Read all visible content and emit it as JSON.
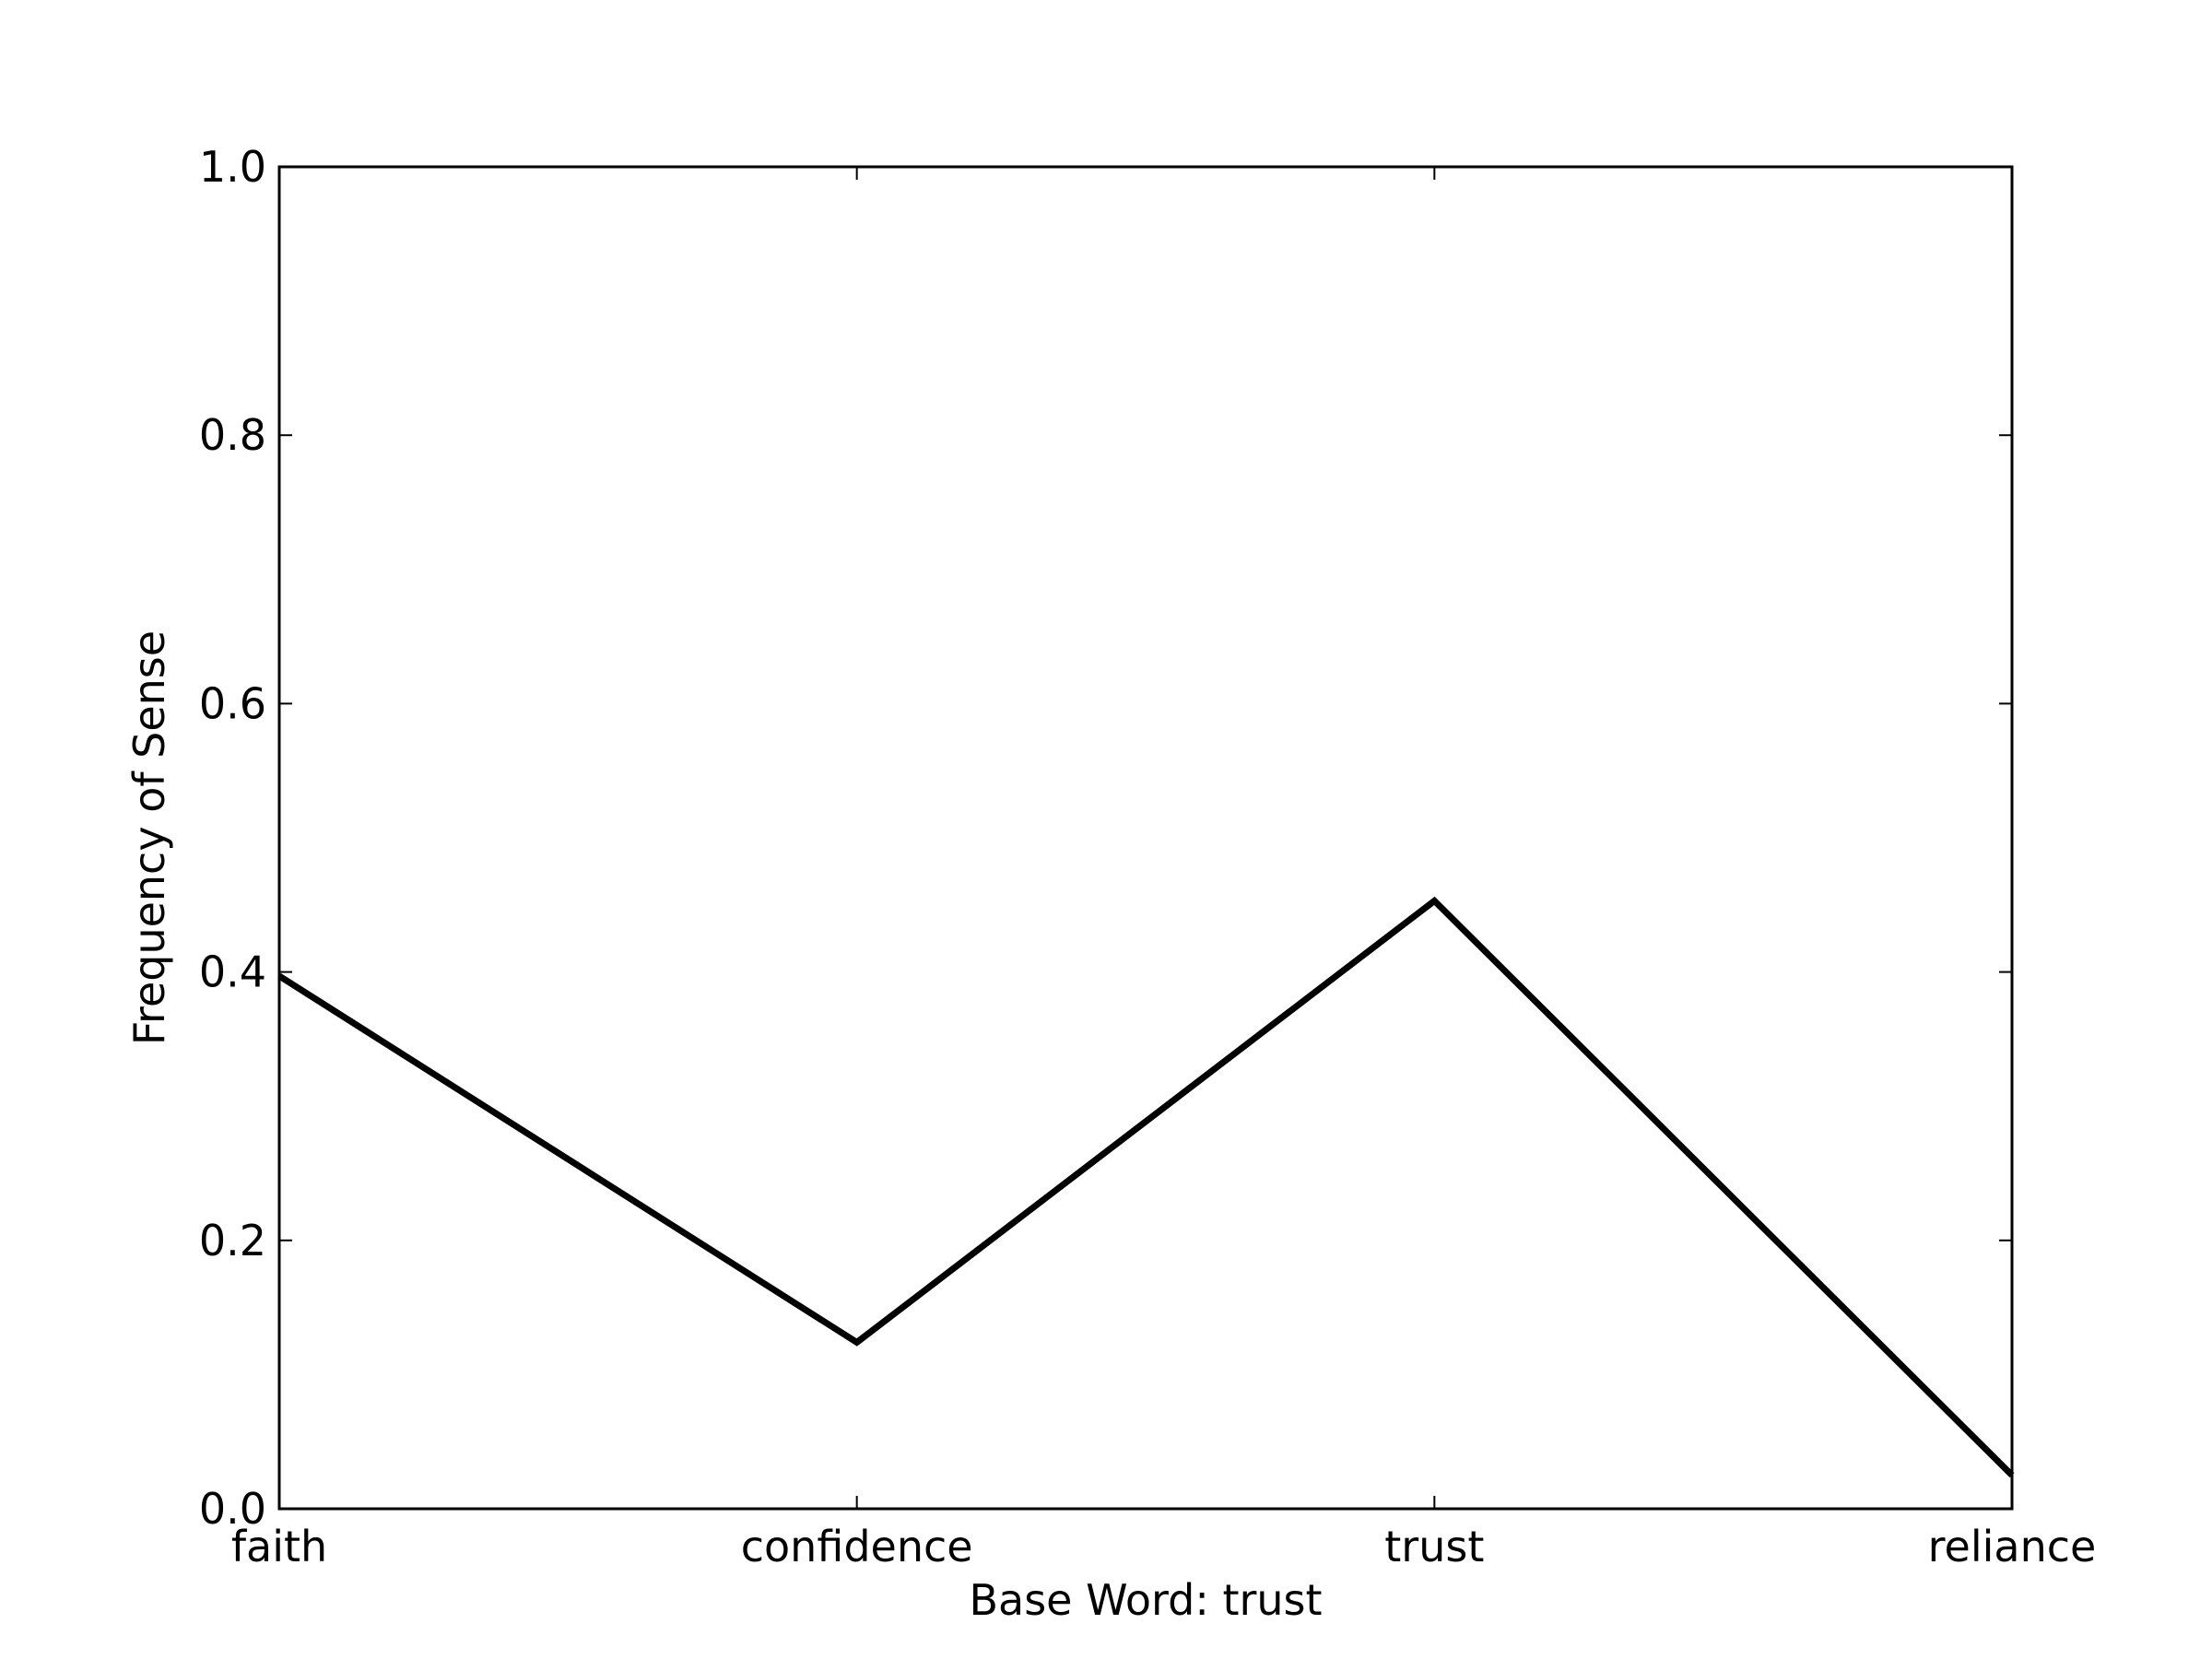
{
  "chart_data": {
    "type": "line",
    "title": "",
    "xlabel": "Base Word: trust",
    "ylabel": "Frequency of Sense",
    "categories": [
      "faith",
      "confidence",
      "trust",
      "reliance"
    ],
    "series": [
      {
        "values": [
          0.397,
          0.124,
          0.453,
          0.025
        ]
      }
    ],
    "ylim": [
      0.0,
      1.0
    ],
    "yticks": [
      "0.0",
      "0.2",
      "0.4",
      "0.6",
      "0.8",
      "1.0"
    ],
    "grid": false,
    "line_color": "#000000"
  }
}
